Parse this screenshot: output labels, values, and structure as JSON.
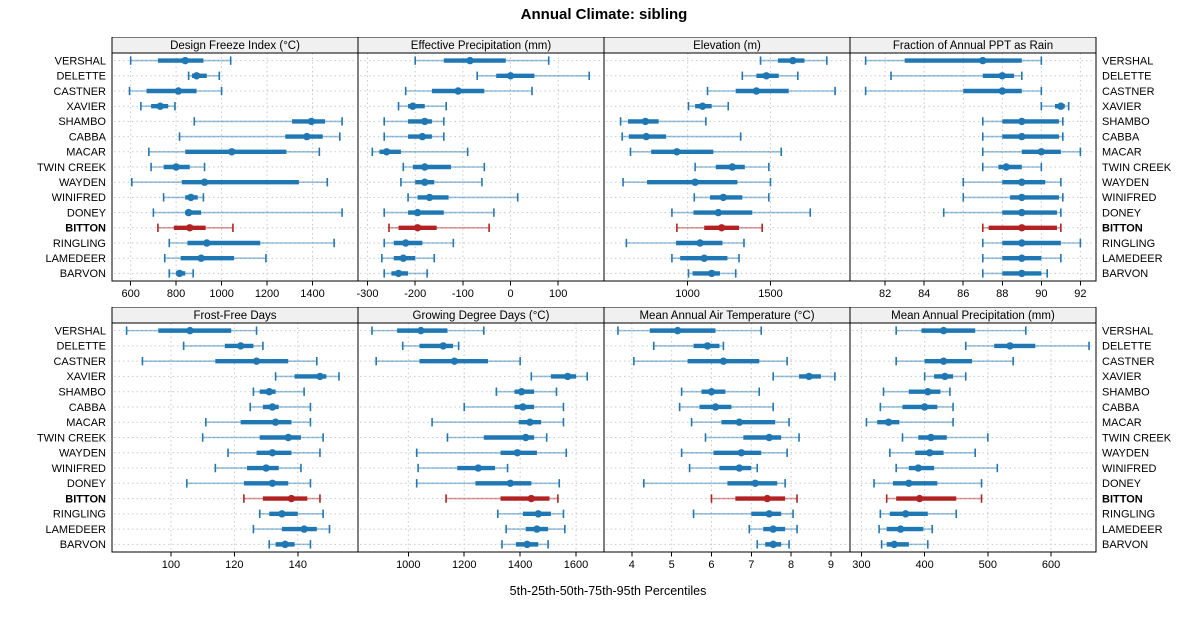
{
  "title": "Annual Climate: sibling",
  "footer": "5th-25th-50th-75th-95th Percentiles",
  "stations": [
    "VERSHAL",
    "DELETTE",
    "CASTNER",
    "XAVIER",
    "SHAMBO",
    "CABBA",
    "MACAR",
    "TWIN CREEK",
    "WAYDEN",
    "WINIFRED",
    "DONEY",
    "BITTON",
    "RINGLING",
    "LAMEDEER",
    "BARVON"
  ],
  "highlight_station": "BITTON",
  "colors": {
    "normal": "#1f77b4",
    "highlight": "#b22222",
    "strip_bg": "#f0f0f0",
    "grid": "#c9c9c9",
    "border": "#000000"
  },
  "chart_data": {
    "type": "dot-whisker-percentile-trellis",
    "percentile_labels": [
      "5th",
      "25th",
      "50th",
      "75th",
      "95th"
    ],
    "layout_note": "2 rows x 4 columns of panels; station labels on both sides; BITTON highlighted",
    "panels": [
      {
        "title": "Design Freeze Index (°C)",
        "xlim": [
          518,
          1600
        ],
        "ticks": [
          600,
          800,
          1000,
          1200,
          1400
        ],
        "values": [
          [
            600,
            720,
            840,
            920,
            1040
          ],
          [
            855,
            870,
            890,
            935,
            990
          ],
          [
            595,
            670,
            810,
            890,
            1000
          ],
          [
            645,
            690,
            730,
            765,
            795
          ],
          [
            880,
            1310,
            1395,
            1455,
            1530
          ],
          [
            815,
            1280,
            1375,
            1445,
            1520
          ],
          [
            680,
            840,
            1045,
            1285,
            1430
          ],
          [
            690,
            745,
            800,
            860,
            925
          ],
          [
            605,
            825,
            925,
            1340,
            1465
          ],
          [
            745,
            840,
            865,
            895,
            920
          ],
          [
            700,
            840,
            855,
            910,
            1530
          ],
          [
            720,
            790,
            860,
            930,
            1050
          ],
          [
            770,
            850,
            935,
            1170,
            1495
          ],
          [
            750,
            820,
            910,
            1055,
            1195
          ],
          [
            770,
            800,
            815,
            840,
            875
          ]
        ]
      },
      {
        "title": "Effective Precipitation (mm)",
        "xlim": [
          -320,
          196
        ],
        "ticks": [
          -300,
          -200,
          -100,
          0,
          100
        ],
        "values": [
          [
            -200,
            -140,
            -85,
            -10,
            80
          ],
          [
            -70,
            -30,
            0,
            50,
            165
          ],
          [
            -220,
            -165,
            -110,
            -55,
            45
          ],
          [
            -235,
            -215,
            -205,
            -180,
            -135
          ],
          [
            -265,
            -215,
            -180,
            -165,
            -140
          ],
          [
            -265,
            -215,
            -185,
            -165,
            -140
          ],
          [
            -290,
            -275,
            -260,
            -230,
            -90
          ],
          [
            -225,
            -205,
            -180,
            -125,
            -55
          ],
          [
            -230,
            -200,
            -180,
            -160,
            -60
          ],
          [
            -215,
            -195,
            -170,
            -130,
            15
          ],
          [
            -265,
            -215,
            -195,
            -140,
            -35
          ],
          [
            -255,
            -235,
            -195,
            -155,
            -45
          ],
          [
            -265,
            -245,
            -220,
            -185,
            -120
          ],
          [
            -270,
            -245,
            -225,
            -200,
            -160
          ],
          [
            -265,
            -250,
            -235,
            -215,
            -175
          ]
        ]
      },
      {
        "title": "Elevation (m)",
        "xlim": [
          495,
          1980
        ],
        "ticks": [
          1000,
          1500
        ],
        "values": [
          [
            1440,
            1545,
            1635,
            1705,
            1840
          ],
          [
            1330,
            1415,
            1475,
            1550,
            1665
          ],
          [
            1120,
            1290,
            1415,
            1610,
            1890
          ],
          [
            1005,
            1045,
            1090,
            1145,
            1245
          ],
          [
            595,
            640,
            745,
            825,
            1110
          ],
          [
            605,
            645,
            750,
            870,
            1320
          ],
          [
            655,
            780,
            935,
            1155,
            1565
          ],
          [
            1045,
            1170,
            1270,
            1345,
            1490
          ],
          [
            610,
            755,
            1045,
            1300,
            1500
          ],
          [
            1040,
            1135,
            1215,
            1330,
            1490
          ],
          [
            905,
            1035,
            1185,
            1390,
            1740
          ],
          [
            935,
            1100,
            1205,
            1310,
            1450
          ],
          [
            630,
            930,
            1075,
            1210,
            1340
          ],
          [
            905,
            955,
            1100,
            1240,
            1310
          ],
          [
            1005,
            1030,
            1145,
            1195,
            1290
          ]
        ]
      },
      {
        "title": "Fraction of Annual PPT as Rain",
        "xlim": [
          80.2,
          92.8
        ],
        "ticks": [
          82,
          84,
          86,
          88,
          90,
          92
        ],
        "values": [
          [
            81,
            83,
            87,
            89,
            90
          ],
          [
            82.3,
            87,
            88,
            88.6,
            89
          ],
          [
            81,
            86,
            88,
            89,
            90
          ],
          [
            90,
            90.7,
            91,
            91.2,
            91.4
          ],
          [
            87,
            88,
            89,
            90.9,
            91.1
          ],
          [
            87,
            88,
            89,
            90.9,
            91.1
          ],
          [
            87,
            89,
            90,
            91,
            92
          ],
          [
            87,
            87.8,
            88.2,
            89,
            90
          ],
          [
            86,
            88,
            89,
            90.2,
            91
          ],
          [
            86,
            88.4,
            89,
            90.9,
            91.1
          ],
          [
            85,
            88,
            89,
            90.8,
            91
          ],
          [
            87,
            87.3,
            89,
            90.8,
            91
          ],
          [
            87,
            88,
            89,
            91,
            92
          ],
          [
            87,
            88,
            89,
            90,
            91
          ],
          [
            87,
            88,
            89,
            90,
            90.3
          ]
        ]
      },
      {
        "title": "Frost-Free Days",
        "xlim": [
          81.4,
          159
        ],
        "ticks": [
          100,
          120,
          140
        ],
        "values": [
          [
            86,
            96,
            106,
            119,
            127
          ],
          [
            104,
            117,
            122,
            126,
            129
          ],
          [
            91,
            114,
            127,
            137,
            146
          ],
          [
            133,
            139,
            147,
            149,
            153
          ],
          [
            126,
            128,
            131,
            133,
            142
          ],
          [
            125,
            129,
            132,
            134,
            144
          ],
          [
            111,
            122,
            133,
            138,
            144
          ],
          [
            110,
            128,
            137,
            141,
            148
          ],
          [
            118,
            127,
            132,
            138,
            147
          ],
          [
            114,
            124,
            130,
            134,
            141
          ],
          [
            105,
            123,
            132,
            137,
            144
          ],
          [
            123,
            129,
            138,
            143,
            147
          ],
          [
            128,
            131,
            135,
            140,
            148
          ],
          [
            126,
            135,
            142,
            146,
            150
          ],
          [
            131,
            133,
            136,
            139,
            144
          ]
        ]
      },
      {
        "title": "Growing Degree Days (°C)",
        "xlim": [
          820,
          1700
        ],
        "ticks": [
          1000,
          1200,
          1400,
          1600
        ],
        "values": [
          [
            870,
            960,
            1045,
            1140,
            1270
          ],
          [
            980,
            1040,
            1125,
            1160,
            1180
          ],
          [
            885,
            1040,
            1165,
            1285,
            1400
          ],
          [
            1440,
            1510,
            1570,
            1600,
            1640
          ],
          [
            1315,
            1380,
            1405,
            1450,
            1530
          ],
          [
            1200,
            1380,
            1410,
            1450,
            1555
          ],
          [
            1085,
            1395,
            1435,
            1475,
            1555
          ],
          [
            1140,
            1270,
            1420,
            1450,
            1495
          ],
          [
            1030,
            1330,
            1390,
            1460,
            1565
          ],
          [
            1035,
            1175,
            1250,
            1310,
            1355
          ],
          [
            1030,
            1240,
            1365,
            1440,
            1540
          ],
          [
            1135,
            1330,
            1440,
            1505,
            1535
          ],
          [
            1320,
            1410,
            1465,
            1510,
            1555
          ],
          [
            1350,
            1420,
            1460,
            1500,
            1560
          ],
          [
            1335,
            1385,
            1425,
            1465,
            1500
          ]
        ]
      },
      {
        "title": "Mean Annual Air Temperature (°C)",
        "xlim": [
          3.3,
          9.48
        ],
        "ticks": [
          4,
          5,
          6,
          7,
          8,
          9
        ],
        "values": [
          [
            3.65,
            4.45,
            5.15,
            6.1,
            7.25
          ],
          [
            4.55,
            5.55,
            5.9,
            6.2,
            6.3
          ],
          [
            4.05,
            5.4,
            6.3,
            7.2,
            7.9
          ],
          [
            7.55,
            8.2,
            8.45,
            8.75,
            9.1
          ],
          [
            5.25,
            5.75,
            6.0,
            6.35,
            7.2
          ],
          [
            5.2,
            5.7,
            6.1,
            6.5,
            7.55
          ],
          [
            5.5,
            6.25,
            6.7,
            7.6,
            7.95
          ],
          [
            5.85,
            6.8,
            7.45,
            7.75,
            8.2
          ],
          [
            5.25,
            6.05,
            6.75,
            7.25,
            7.9
          ],
          [
            5.45,
            6.2,
            6.7,
            7.0,
            7.15
          ],
          [
            4.3,
            6.4,
            7.1,
            7.65,
            7.85
          ],
          [
            6.0,
            6.6,
            7.4,
            7.85,
            8.15
          ],
          [
            5.55,
            7.0,
            7.45,
            7.75,
            8.05
          ],
          [
            6.95,
            7.3,
            7.55,
            7.85,
            8.15
          ],
          [
            7.15,
            7.35,
            7.55,
            7.75,
            7.95
          ]
        ]
      },
      {
        "title": "Mean Annual Precipitation (mm)",
        "xlim": [
          282,
          671
        ],
        "ticks": [
          300,
          400,
          500,
          600
        ],
        "values": [
          [
            355,
            395,
            430,
            480,
            560
          ],
          [
            465,
            510,
            535,
            575,
            660
          ],
          [
            355,
            400,
            430,
            475,
            540
          ],
          [
            400,
            415,
            432,
            445,
            465
          ],
          [
            335,
            375,
            405,
            425,
            440
          ],
          [
            330,
            365,
            400,
            420,
            445
          ],
          [
            308,
            325,
            343,
            360,
            445
          ],
          [
            365,
            390,
            410,
            435,
            500
          ],
          [
            345,
            385,
            408,
            430,
            480
          ],
          [
            355,
            375,
            390,
            415,
            515
          ],
          [
            320,
            350,
            375,
            420,
            490
          ],
          [
            340,
            355,
            392,
            450,
            490
          ],
          [
            330,
            345,
            370,
            405,
            450
          ],
          [
            328,
            340,
            362,
            398,
            412
          ],
          [
            332,
            340,
            352,
            375,
            405
          ]
        ]
      }
    ]
  }
}
